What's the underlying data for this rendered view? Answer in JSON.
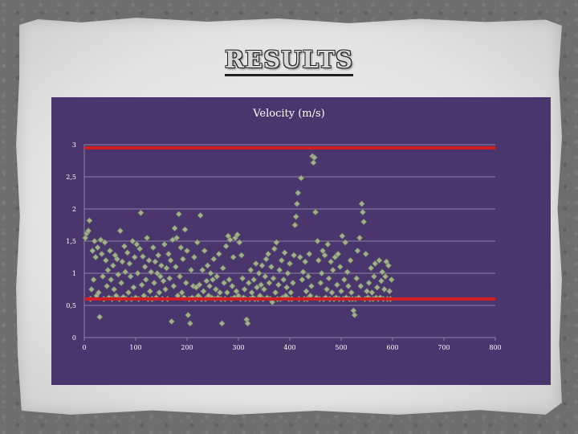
{
  "slide": {
    "title": "RESULTS"
  },
  "colors": {
    "plot_background": "#4a356d",
    "gridline": "#8f82a8",
    "marker": "#a2b08d",
    "marker_edge": "#6f7d62",
    "threshold_line": "#d01e26"
  },
  "chart_data": {
    "type": "scatter",
    "title": "Velocity (m/s)",
    "xlabel": "",
    "ylabel": "",
    "xlim": [
      0,
      800
    ],
    "ylim": [
      0,
      3
    ],
    "x_ticks": [
      "0",
      "100",
      "200",
      "300",
      "400",
      "500",
      "600",
      "700",
      "800"
    ],
    "y_ticks": [
      "0",
      "0,5",
      "1",
      "1,5",
      "2",
      "2,5",
      "3"
    ],
    "grid": "horizontal",
    "legend": "none",
    "marker": "diamond",
    "reference_lines": [
      {
        "y": 2.95,
        "x_range": [
          0,
          800
        ]
      },
      {
        "y": 0.6,
        "x_range": [
          0,
          800
        ]
      }
    ],
    "points": [
      [
        2,
        1.55
      ],
      [
        5,
        1.62
      ],
      [
        8,
        1.66
      ],
      [
        10,
        1.82
      ],
      [
        12,
        0.6
      ],
      [
        14,
        0.75
      ],
      [
        16,
        1.35
      ],
      [
        18,
        0.9
      ],
      [
        20,
        1.5
      ],
      [
        22,
        1.25
      ],
      [
        24,
        0.65
      ],
      [
        26,
        1.4
      ],
      [
        28,
        0.7
      ],
      [
        30,
        0.32
      ],
      [
        32,
        1.52
      ],
      [
        34,
        1.3
      ],
      [
        36,
        0.95
      ],
      [
        38,
        0.6
      ],
      [
        40,
        1.48
      ],
      [
        42,
        1.2
      ],
      [
        44,
        0.8
      ],
      [
        46,
        1.05
      ],
      [
        48,
        0.62
      ],
      [
        50,
        1.35
      ],
      [
        52,
        0.9
      ],
      [
        54,
        0.6
      ],
      [
        56,
        1.12
      ],
      [
        58,
        0.75
      ],
      [
        60,
        1.28
      ],
      [
        62,
        0.65
      ],
      [
        64,
        1.22
      ],
      [
        66,
        0.98
      ],
      [
        68,
        0.6
      ],
      [
        70,
        1.66
      ],
      [
        72,
        0.85
      ],
      [
        74,
        1.18
      ],
      [
        76,
        0.63
      ],
      [
        78,
        1.42
      ],
      [
        80,
        1.02
      ],
      [
        82,
        0.6
      ],
      [
        84,
        1.32
      ],
      [
        86,
        0.7
      ],
      [
        88,
        1.15
      ],
      [
        90,
        0.95
      ],
      [
        92,
        0.6
      ],
      [
        94,
        1.5
      ],
      [
        96,
        0.78
      ],
      [
        98,
        1.25
      ],
      [
        100,
        0.62
      ],
      [
        102,
        1.45
      ],
      [
        104,
        1.0
      ],
      [
        106,
        0.6
      ],
      [
        108,
        1.38
      ],
      [
        110,
        1.94
      ],
      [
        112,
        0.82
      ],
      [
        114,
        1.26
      ],
      [
        116,
        0.65
      ],
      [
        118,
        1.1
      ],
      [
        120,
        0.9
      ],
      [
        122,
        1.55
      ],
      [
        124,
        0.6
      ],
      [
        126,
        1.2
      ],
      [
        128,
        0.72
      ],
      [
        130,
        1.02
      ],
      [
        132,
        0.6
      ],
      [
        134,
        1.4
      ],
      [
        136,
        0.85
      ],
      [
        138,
        1.18
      ],
      [
        140,
        0.62
      ],
      [
        142,
        1.0
      ],
      [
        144,
        1.28
      ],
      [
        146,
        0.7
      ],
      [
        148,
        0.95
      ],
      [
        150,
        1.12
      ],
      [
        152,
        0.6
      ],
      [
        154,
        0.88
      ],
      [
        156,
        1.45
      ],
      [
        158,
        0.75
      ],
      [
        160,
        1.08
      ],
      [
        162,
        0.6
      ],
      [
        164,
        1.3
      ],
      [
        166,
        0.92
      ],
      [
        168,
        1.2
      ],
      [
        170,
        0.25
      ],
      [
        172,
        1.52
      ],
      [
        174,
        0.8
      ],
      [
        176,
        1.7
      ],
      [
        178,
        1.1
      ],
      [
        180,
        1.55
      ],
      [
        182,
        0.65
      ],
      [
        184,
        1.92
      ],
      [
        186,
        0.95
      ],
      [
        188,
        1.4
      ],
      [
        190,
        0.7
      ],
      [
        192,
        1.22
      ],
      [
        194,
        0.62
      ],
      [
        196,
        1.68
      ],
      [
        198,
        0.85
      ],
      [
        200,
        1.35
      ],
      [
        202,
        0.35
      ],
      [
        204,
        0.6
      ],
      [
        206,
        0.22
      ],
      [
        208,
        1.05
      ],
      [
        210,
        0.62
      ],
      [
        212,
        0.8
      ],
      [
        214,
        1.25
      ],
      [
        216,
        0.6
      ],
      [
        218,
        0.78
      ],
      [
        220,
        1.48
      ],
      [
        222,
        0.65
      ],
      [
        224,
        0.82
      ],
      [
        226,
        1.9
      ],
      [
        228,
        0.6
      ],
      [
        230,
        1.05
      ],
      [
        232,
        0.72
      ],
      [
        234,
        1.35
      ],
      [
        236,
        0.6
      ],
      [
        238,
        0.88
      ],
      [
        240,
        1.12
      ],
      [
        242,
        0.65
      ],
      [
        244,
        0.8
      ],
      [
        246,
        1.0
      ],
      [
        248,
        0.62
      ],
      [
        250,
        0.9
      ],
      [
        252,
        1.22
      ],
      [
        254,
        0.6
      ],
      [
        256,
        0.75
      ],
      [
        258,
        0.95
      ],
      [
        260,
        0.62
      ],
      [
        262,
        1.3
      ],
      [
        264,
        0.7
      ],
      [
        266,
        0.6
      ],
      [
        268,
        0.22
      ],
      [
        270,
        1.08
      ],
      [
        272,
        0.85
      ],
      [
        274,
        0.6
      ],
      [
        276,
        1.42
      ],
      [
        278,
        0.7
      ],
      [
        280,
        1.58
      ],
      [
        282,
        0.9
      ],
      [
        284,
        1.52
      ],
      [
        286,
        0.6
      ],
      [
        288,
        0.8
      ],
      [
        290,
        1.25
      ],
      [
        292,
        0.62
      ],
      [
        294,
        1.55
      ],
      [
        296,
        0.72
      ],
      [
        298,
        1.6
      ],
      [
        300,
        0.65
      ],
      [
        302,
        1.48
      ],
      [
        304,
        0.6
      ],
      [
        306,
        1.28
      ],
      [
        308,
        0.92
      ],
      [
        310,
        0.62
      ],
      [
        312,
        0.75
      ],
      [
        314,
        0.6
      ],
      [
        316,
        0.28
      ],
      [
        318,
        0.22
      ],
      [
        320,
        0.85
      ],
      [
        322,
        0.6
      ],
      [
        324,
        1.05
      ],
      [
        326,
        0.7
      ],
      [
        328,
        0.62
      ],
      [
        330,
        0.9
      ],
      [
        332,
        0.6
      ],
      [
        334,
        1.15
      ],
      [
        336,
        0.78
      ],
      [
        338,
        0.6
      ],
      [
        340,
        1.0
      ],
      [
        342,
        0.65
      ],
      [
        344,
        0.82
      ],
      [
        346,
        1.12
      ],
      [
        348,
        0.6
      ],
      [
        350,
        0.75
      ],
      [
        352,
        0.95
      ],
      [
        354,
        1.22
      ],
      [
        356,
        0.62
      ],
      [
        358,
        1.3
      ],
      [
        360,
        0.85
      ],
      [
        362,
        0.6
      ],
      [
        364,
        1.1
      ],
      [
        366,
        0.55
      ],
      [
        368,
        0.92
      ],
      [
        370,
        1.38
      ],
      [
        372,
        0.7
      ],
      [
        374,
        1.48
      ],
      [
        376,
        0.6
      ],
      [
        378,
        0.82
      ],
      [
        380,
        1.05
      ],
      [
        382,
        0.6
      ],
      [
        384,
        1.2
      ],
      [
        386,
        0.62
      ],
      [
        388,
        0.9
      ],
      [
        390,
        1.32
      ],
      [
        392,
        0.65
      ],
      [
        394,
        0.78
      ],
      [
        396,
        1.0
      ],
      [
        398,
        0.6
      ],
      [
        400,
        1.15
      ],
      [
        402,
        0.7
      ],
      [
        404,
        0.6
      ],
      [
        406,
        0.85
      ],
      [
        408,
        1.28
      ],
      [
        410,
        1.75
      ],
      [
        412,
        1.88
      ],
      [
        414,
        2.08
      ],
      [
        416,
        2.25
      ],
      [
        418,
        0.6
      ],
      [
        420,
        1.25
      ],
      [
        422,
        2.48
      ],
      [
        424,
        0.9
      ],
      [
        426,
        1.02
      ],
      [
        428,
        0.6
      ],
      [
        430,
        1.18
      ],
      [
        432,
        0.72
      ],
      [
        434,
        0.6
      ],
      [
        436,
        0.95
      ],
      [
        438,
        1.3
      ],
      [
        440,
        0.65
      ],
      [
        442,
        0.8
      ],
      [
        444,
        2.82
      ],
      [
        446,
        2.72
      ],
      [
        448,
        2.8
      ],
      [
        450,
        1.95
      ],
      [
        452,
        0.62
      ],
      [
        454,
        1.5
      ],
      [
        456,
        1.2
      ],
      [
        458,
        0.6
      ],
      [
        460,
        0.85
      ],
      [
        462,
        1.0
      ],
      [
        464,
        1.35
      ],
      [
        466,
        0.6
      ],
      [
        468,
        1.28
      ],
      [
        470,
        0.62
      ],
      [
        472,
        0.75
      ],
      [
        474,
        1.45
      ],
      [
        476,
        0.92
      ],
      [
        478,
        0.6
      ],
      [
        480,
        1.18
      ],
      [
        482,
        0.7
      ],
      [
        484,
        1.05
      ],
      [
        486,
        0.6
      ],
      [
        488,
        1.25
      ],
      [
        490,
        0.62
      ],
      [
        492,
        0.82
      ],
      [
        494,
        1.3
      ],
      [
        496,
        0.6
      ],
      [
        498,
        1.1
      ],
      [
        500,
        0.72
      ],
      [
        502,
        1.58
      ],
      [
        504,
        0.6
      ],
      [
        506,
        0.9
      ],
      [
        508,
        1.48
      ],
      [
        510,
        0.62
      ],
      [
        512,
        1.02
      ],
      [
        514,
        0.8
      ],
      [
        516,
        0.6
      ],
      [
        518,
        1.2
      ],
      [
        520,
        0.7
      ],
      [
        522,
        0.6
      ],
      [
        524,
        0.42
      ],
      [
        526,
        0.35
      ],
      [
        528,
        0.6
      ],
      [
        530,
        0.92
      ],
      [
        532,
        1.35
      ],
      [
        534,
        0.62
      ],
      [
        536,
        1.55
      ],
      [
        538,
        0.8
      ],
      [
        540,
        2.08
      ],
      [
        542,
        1.95
      ],
      [
        544,
        1.8
      ],
      [
        546,
        0.6
      ],
      [
        548,
        1.3
      ],
      [
        550,
        0.72
      ],
      [
        552,
        0.62
      ],
      [
        554,
        0.85
      ],
      [
        556,
        0.6
      ],
      [
        558,
        1.08
      ],
      [
        560,
        0.7
      ],
      [
        562,
        0.6
      ],
      [
        564,
        0.95
      ],
      [
        566,
        1.15
      ],
      [
        568,
        0.62
      ],
      [
        570,
        0.78
      ],
      [
        572,
        0.6
      ],
      [
        574,
        1.2
      ],
      [
        576,
        0.62
      ],
      [
        578,
        0.88
      ],
      [
        580,
        1.02
      ],
      [
        582,
        0.6
      ],
      [
        584,
        0.75
      ],
      [
        586,
        0.95
      ],
      [
        588,
        1.18
      ],
      [
        590,
        0.6
      ],
      [
        592,
        1.12
      ],
      [
        594,
        0.72
      ],
      [
        596,
        0.6
      ],
      [
        598,
        0.9
      ]
    ]
  }
}
